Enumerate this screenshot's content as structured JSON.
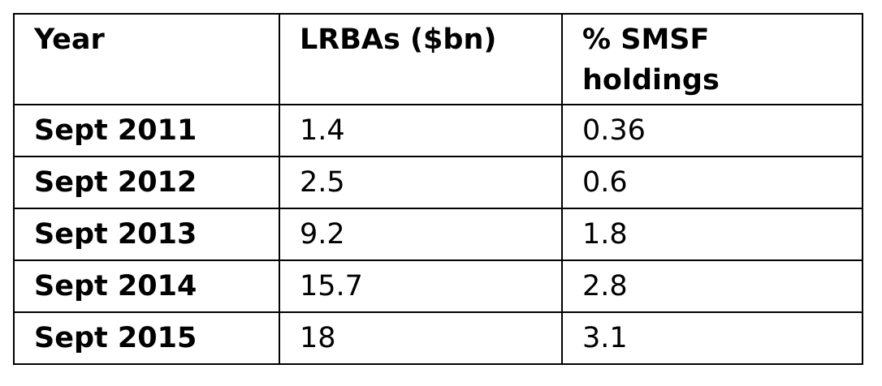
{
  "table": {
    "headers": [
      "Year",
      "LRBAs ($bn)",
      "% SMSF holdings"
    ],
    "rows": [
      [
        "Sept 2011",
        "1.4",
        "0.36"
      ],
      [
        "Sept 2012",
        "2.5",
        "0.6"
      ],
      [
        "Sept 2013",
        "9.2",
        "1.8"
      ],
      [
        "Sept 2014",
        "15.7",
        "2.8"
      ],
      [
        "Sept 2015",
        "18",
        "3.1"
      ]
    ]
  },
  "chart_data": {
    "type": "table",
    "columns": [
      "Year",
      "LRBAs ($bn)",
      "% SMSF holdings"
    ],
    "x": [
      "Sept 2011",
      "Sept 2012",
      "Sept 2013",
      "Sept 2014",
      "Sept 2015"
    ],
    "series": [
      {
        "name": "LRBAs ($bn)",
        "values": [
          1.4,
          2.5,
          9.2,
          15.7,
          18
        ]
      },
      {
        "name": "% SMSF holdings",
        "values": [
          0.36,
          0.6,
          1.8,
          2.8,
          3.1
        ]
      }
    ]
  }
}
